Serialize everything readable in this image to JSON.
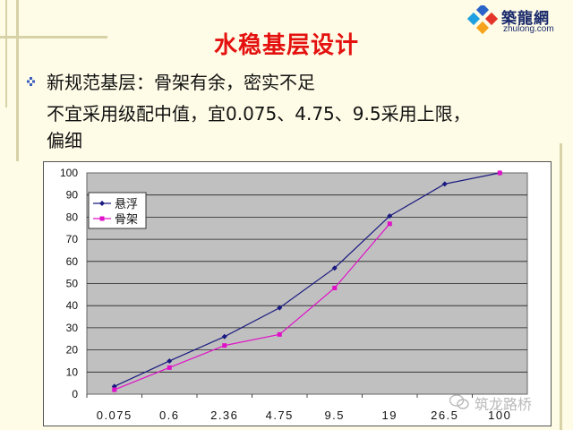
{
  "logo": {
    "name_cn": "築龍網",
    "domain": "zhulong.com"
  },
  "slide": {
    "title": "水稳基层设计",
    "bullet": "新规范基层：骨架有余，密实不足",
    "line2": "不宜采用级配中值，宜0.075、4.75、9.5采用上限，",
    "line3": "偏细"
  },
  "watermark": {
    "text": "筑龙路桥"
  },
  "colors": {
    "title": "#e4110f",
    "series_1": "#1a1a80",
    "series_2": "#e010c8",
    "plot_bg": "#c0c0c0"
  },
  "chart_data": {
    "type": "line",
    "title": "",
    "xlabel": "",
    "ylabel": "",
    "categories": [
      "0.075",
      "0.6",
      "2.36",
      "4.75",
      "9.5",
      "19",
      "26.5",
      "100"
    ],
    "ylim": [
      0,
      100
    ],
    "yticks": [
      0,
      10,
      20,
      30,
      40,
      50,
      60,
      70,
      80,
      90,
      100
    ],
    "grid": true,
    "legend": "top-left",
    "series": [
      {
        "name": "悬浮",
        "color": "#1a1a80",
        "marker": "diamond",
        "values": [
          3.5,
          15,
          26,
          39,
          57,
          80.5,
          95,
          100
        ]
      },
      {
        "name": "骨架",
        "color": "#e010c8",
        "marker": "square",
        "values": [
          2,
          12,
          22,
          27,
          48,
          77,
          null,
          100
        ]
      }
    ]
  }
}
